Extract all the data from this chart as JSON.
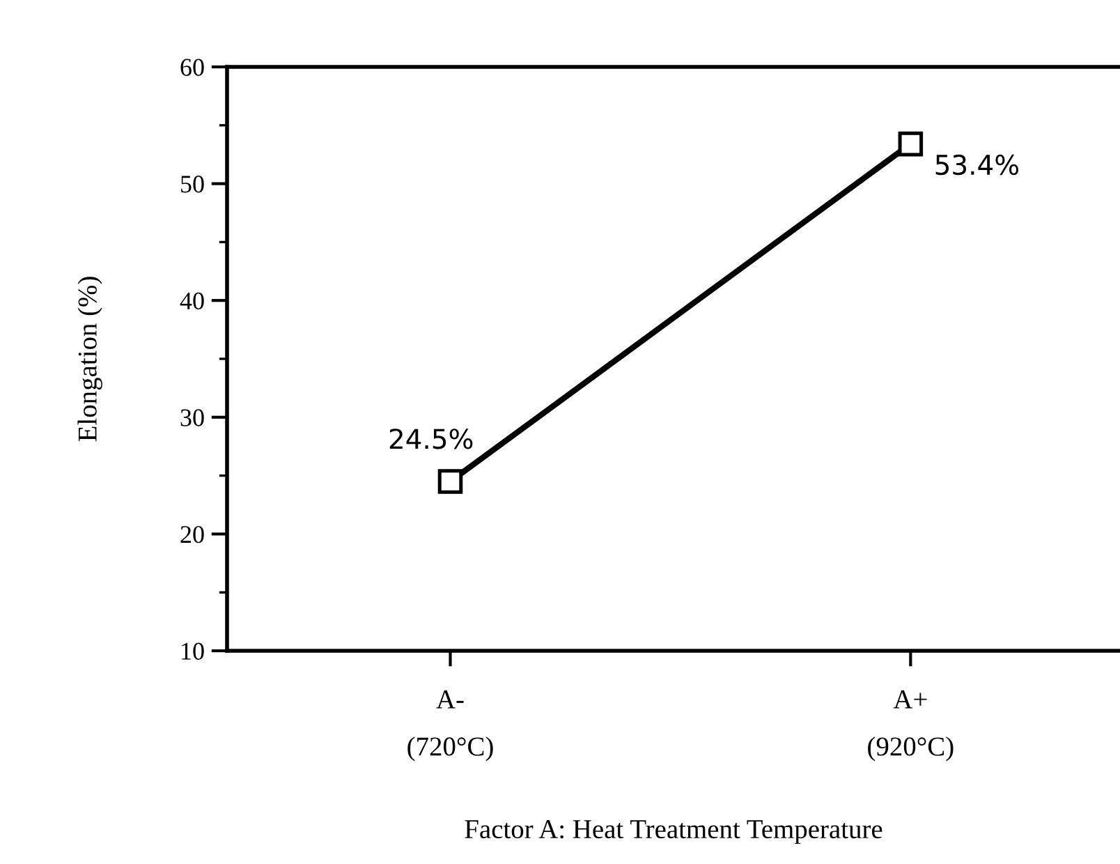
{
  "chart_data": {
    "type": "line",
    "xlabel": "Factor A: Heat Treatment Temperature",
    "ylabel": "Elongation (%)",
    "categories": [
      "A-\n(720°C)",
      "A+\n(920°C)"
    ],
    "series": [
      {
        "color": "#000000",
        "values": [
          24.5,
          53.4
        ],
        "value_labels": [
          "24.5%",
          "53.4%"
        ]
      }
    ],
    "ylim": [
      10,
      60
    ],
    "yticks": [
      10,
      20,
      30,
      40,
      50,
      60
    ],
    "marker": "square",
    "line_style": "solid",
    "grid": false,
    "legend": false
  }
}
